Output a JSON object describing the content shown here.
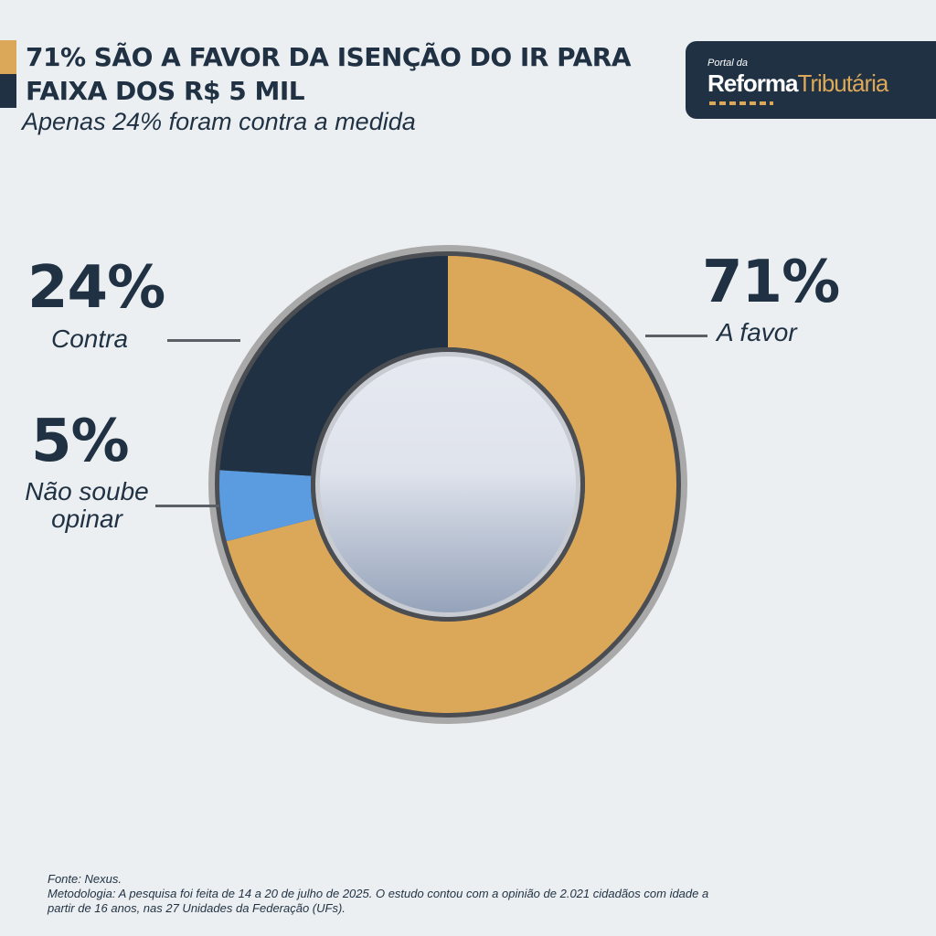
{
  "header": {
    "title_line1": "71% SÃO A FAVOR DA ISENÇÃO DO IR PARA",
    "title_line2": "FAIXA DOS R$ 5 MIL",
    "subtitle": "Apenas 24% foram contra a medida"
  },
  "logo": {
    "small": "Portal da",
    "bold": "Reforma",
    "light": "Tributária"
  },
  "chart_data": {
    "type": "pie",
    "title": "71% SÃO A FAVOR DA ISENÇÃO DO IR PARA FAIXA DOS R$ 5 MIL",
    "subtitle": "Apenas 24% foram contra a medida",
    "categories": [
      "A favor",
      "Não soube opinar",
      "Contra"
    ],
    "values": [
      71,
      5,
      24
    ],
    "value_labels": [
      "71%",
      "5%",
      "24%"
    ],
    "colors": [
      "#dba85a",
      "#5b9be0",
      "#1f3142"
    ],
    "legend": "none"
  },
  "labels": {
    "favor_pct": "71%",
    "favor_text": "A favor",
    "contra_pct": "24%",
    "contra_text": "Contra",
    "nao_pct": "5%",
    "nao_text_line1": "Não soube",
    "nao_text_line2": "opinar"
  },
  "footer": {
    "source": "Fonte: Nexus.",
    "methodology_line1": "Metodologia: A pesquisa foi feita de 14 a 20 de julho de 2025. O estudo contou com a opinião de 2.021 cidadãos com idade a",
    "methodology_line2": "partir de 16 anos, nas 27 Unidades da Federação (UFs)."
  }
}
